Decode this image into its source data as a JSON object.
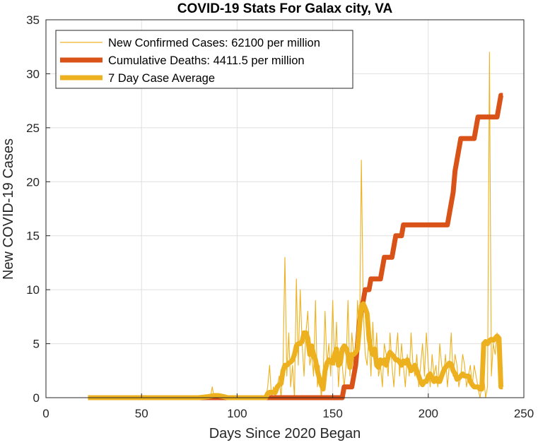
{
  "chart_data": {
    "type": "line",
    "title": "COVID-19 Stats For Galax city, VA",
    "xlabel": "Days Since 2020 Began",
    "ylabel": "New COVID-19 Cases",
    "xlim": [
      0,
      250
    ],
    "ylim": [
      0,
      35
    ],
    "xticks": [
      "0",
      "50",
      "100",
      "150",
      "200",
      "250"
    ],
    "yticks": [
      "0",
      "5",
      "10",
      "15",
      "20",
      "25",
      "30",
      "35"
    ],
    "grid": true,
    "legend_position": "top-left",
    "series": [
      {
        "name": "New Confirmed Cases: 62100 per million",
        "color": "#EDB120",
        "style": "thin",
        "x": [
          22,
          30,
          40,
          50,
          60,
          70,
          80,
          86,
          87,
          88,
          89,
          90,
          95,
          100,
          110,
          115,
          116,
          117,
          118,
          119,
          120,
          121,
          122,
          123,
          124,
          125,
          126,
          127,
          128,
          129,
          130,
          131,
          132,
          133,
          134,
          135,
          136,
          137,
          138,
          139,
          140,
          141,
          142,
          143,
          144,
          145,
          146,
          147,
          148,
          149,
          150,
          151,
          152,
          153,
          154,
          155,
          156,
          157,
          158,
          159,
          160,
          161,
          162,
          163,
          164,
          165,
          166,
          167,
          168,
          169,
          170,
          171,
          172,
          173,
          174,
          175,
          176,
          177,
          178,
          179,
          180,
          181,
          182,
          183,
          184,
          185,
          186,
          187,
          188,
          189,
          190,
          191,
          192,
          193,
          194,
          195,
          196,
          197,
          198,
          199,
          200,
          201,
          202,
          203,
          204,
          205,
          206,
          207,
          208,
          209,
          210,
          211,
          212,
          213,
          214,
          215,
          216,
          217,
          218,
          219,
          220,
          221,
          222,
          223,
          224,
          225,
          226,
          227,
          228,
          229,
          230,
          231,
          232,
          233,
          234,
          235,
          236,
          237,
          238,
          239
        ],
        "values": [
          0,
          0,
          0,
          0,
          0,
          0,
          0,
          0,
          1,
          0,
          0,
          0,
          0,
          0,
          0,
          0,
          1,
          3,
          0,
          1,
          0,
          1,
          2,
          0,
          3,
          13,
          2,
          6,
          1,
          3,
          0,
          11,
          3,
          10,
          5,
          2,
          6,
          8,
          3,
          4,
          2,
          9,
          1,
          3,
          0,
          2,
          8,
          3,
          5,
          2,
          9,
          3,
          7,
          1,
          4,
          3,
          1,
          3,
          9,
          2,
          6,
          4,
          3,
          9,
          5,
          22,
          8,
          4,
          3,
          6,
          2,
          7,
          3,
          6,
          2,
          3,
          1,
          5,
          4,
          2,
          6,
          3,
          1,
          4,
          6,
          2,
          5,
          3,
          1,
          4,
          2,
          6,
          3,
          2,
          4,
          1,
          3,
          5,
          2,
          6,
          3,
          1,
          4,
          2,
          3,
          1,
          5,
          3,
          2,
          4,
          1,
          3,
          6,
          2,
          4,
          3,
          1,
          2,
          4,
          3,
          1,
          2,
          3,
          1,
          3,
          2,
          1,
          0,
          1,
          2,
          0,
          1,
          32,
          2,
          5,
          4,
          6,
          5,
          3,
          1
        ],
        "note": ""
      },
      {
        "name": "Cumulative Deaths: 4411.5 per million",
        "color": "#D95319",
        "style": "thick",
        "x": [
          22,
          155,
          156,
          157,
          158,
          159,
          160,
          161,
          162,
          163,
          164,
          165,
          166,
          167,
          168,
          169,
          170,
          171,
          172,
          173,
          174,
          175,
          176,
          177,
          178,
          179,
          180,
          181,
          182,
          183,
          184,
          185,
          186,
          187,
          188,
          189,
          190,
          191,
          192,
          193,
          194,
          195,
          196,
          197,
          198,
          199,
          200,
          201,
          202,
          203,
          204,
          205,
          206,
          207,
          208,
          209,
          210,
          211,
          212,
          213,
          214,
          215,
          216,
          217,
          218,
          219,
          220,
          221,
          222,
          223,
          224,
          225,
          226,
          227,
          228,
          229,
          230,
          231,
          232,
          233,
          234,
          235,
          236,
          237,
          238,
          239
        ],
        "values": [
          0,
          0,
          1,
          1,
          1,
          1,
          1,
          2,
          3,
          5,
          7,
          8,
          9,
          10,
          10,
          10,
          11,
          11,
          11,
          11,
          11,
          11,
          12,
          13,
          13,
          13,
          13,
          13,
          14,
          15,
          15,
          15,
          15,
          16,
          16,
          16,
          16,
          16,
          16,
          16,
          16,
          16,
          16,
          16,
          16,
          16,
          16,
          16,
          16,
          16,
          16,
          16,
          16,
          16,
          16,
          16,
          16,
          17,
          18,
          19,
          21,
          22,
          23,
          24,
          24,
          24,
          24,
          24,
          24,
          24,
          24,
          25,
          26,
          26,
          26,
          26,
          26,
          26,
          26,
          26,
          26,
          26,
          26,
          27,
          28,
          28
        ]
      },
      {
        "name": "7 Day Case Average",
        "color": "#EDB120",
        "style": "thick",
        "x": [
          22,
          60,
          80,
          85,
          88,
          90,
          93,
          95,
          100,
          110,
          115,
          116,
          117,
          118,
          119,
          120,
          121,
          122,
          123,
          124,
          125,
          126,
          127,
          128,
          129,
          130,
          131,
          132,
          133,
          134,
          135,
          136,
          137,
          138,
          139,
          140,
          141,
          142,
          143,
          144,
          145,
          146,
          147,
          148,
          149,
          150,
          151,
          152,
          153,
          154,
          155,
          156,
          157,
          158,
          159,
          160,
          161,
          162,
          163,
          164,
          165,
          166,
          167,
          168,
          169,
          170,
          171,
          172,
          173,
          174,
          175,
          176,
          177,
          178,
          179,
          180,
          181,
          182,
          183,
          184,
          185,
          186,
          187,
          188,
          189,
          190,
          191,
          192,
          193,
          194,
          195,
          196,
          197,
          198,
          199,
          200,
          201,
          202,
          203,
          204,
          205,
          206,
          207,
          208,
          209,
          210,
          211,
          212,
          213,
          214,
          215,
          216,
          217,
          218,
          219,
          220,
          221,
          222,
          223,
          224,
          225,
          226,
          227,
          228,
          229,
          230,
          231,
          232,
          233,
          234,
          235,
          236,
          237,
          238,
          239
        ],
        "values": [
          0,
          0,
          0,
          0.1,
          0.2,
          0.2,
          0.1,
          0,
          0,
          0,
          0,
          0.4,
          0.5,
          0.5,
          0.5,
          0.5,
          1.0,
          1.2,
          1.3,
          2.5,
          3.0,
          3.0,
          3.2,
          3.3,
          3.5,
          4.0,
          4.8,
          5.0,
          5.0,
          5.2,
          6.0,
          6.0,
          5.5,
          4.0,
          4.8,
          4.0,
          3.5,
          2.5,
          1.8,
          1.2,
          0.8,
          2.5,
          3.2,
          3.5,
          3.3,
          3.2,
          4.0,
          4.5,
          3.0,
          3.2,
          4.5,
          4.8,
          4.6,
          4.0,
          2.8,
          4.0,
          4.0,
          4.2,
          4.5,
          6.5,
          8.5,
          8.7,
          8.3,
          7.8,
          5.5,
          4.5,
          4.0,
          4.5,
          3.0,
          2.8,
          3.5,
          3.2,
          3.5,
          3.0,
          3.8,
          4.2,
          4.0,
          3.8,
          3.5,
          3.5,
          3.3,
          3.0,
          3.4,
          3.2,
          3.5,
          3.0,
          2.5,
          2.8,
          3.0,
          2.5,
          2.0,
          1.5,
          1.2,
          1.5,
          1.5,
          2.0,
          2.2,
          1.8,
          1.5,
          1.8,
          1.5,
          1.5,
          2.0,
          2.5,
          2.8,
          3.0,
          3.2,
          3.1,
          2.5,
          2.2,
          1.7,
          1.8,
          2.0,
          2.2,
          2.0,
          2.0,
          2.0,
          1.5,
          1.2,
          1.0,
          1.0,
          1.0,
          0.8,
          0.8,
          5.0,
          5.2,
          5.0,
          5.3,
          5.4,
          5.3,
          5.5,
          5.7,
          5.5,
          1.0,
          1.0
        ]
      }
    ]
  }
}
